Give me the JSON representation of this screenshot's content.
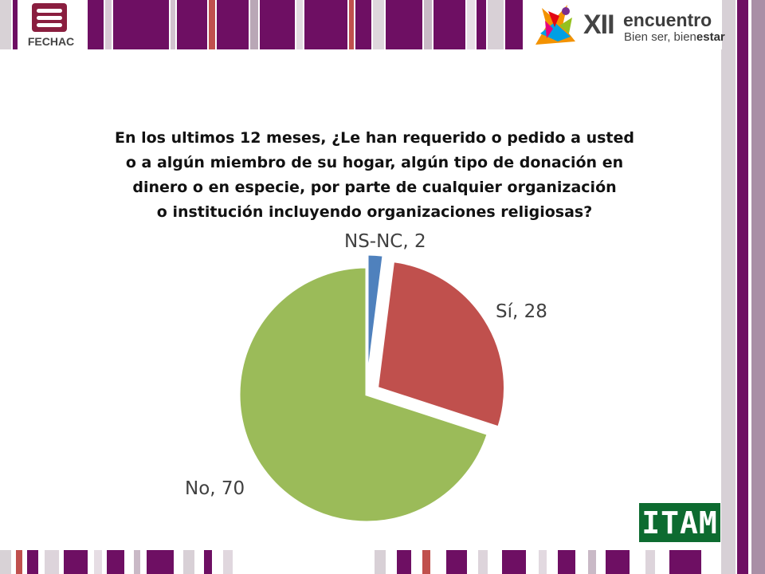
{
  "header": {
    "left_logo_text": "FECHAC",
    "right_logo_number": "XII",
    "right_logo_word": "encuentro",
    "right_logo_tagline_a": "Bien ser, bien",
    "right_logo_tagline_b": "estar"
  },
  "footer": {
    "logo_text": "ITAM"
  },
  "colors": {
    "purple": "#6e0f63",
    "slice_ns_nc": "#4f81bd",
    "slice_si": "#c0504d",
    "slice_no": "#9bbb59"
  },
  "chart_data": {
    "type": "pie",
    "title": "En los ultimos 12 meses, ¿Le han requerido o pedido a usted o a algún miembro de su hogar, algún tipo de donación en dinero o en especie, por parte de cualquier organización o institución incluyendo organizaciones religiosas?",
    "title_lines": [
      "En los ultimos 12 meses, ¿Le han requerido o pedido a usted",
      "o a algún miembro de su hogar, algún tipo de donación en",
      "dinero o en especie, por parte de cualquier organización",
      "o institución incluyendo organizaciones religiosas?"
    ],
    "slices": [
      {
        "label": "NS-NC",
        "value": 2,
        "display": "NS-NC, 2",
        "color": "#4f81bd",
        "exploded": true
      },
      {
        "label": "Sí",
        "value": 28,
        "display": "Sí, 28",
        "color": "#c0504d",
        "exploded": true
      },
      {
        "label": "No",
        "value": 70,
        "display": "No, 70",
        "color": "#9bbb59",
        "exploded": false
      }
    ]
  }
}
